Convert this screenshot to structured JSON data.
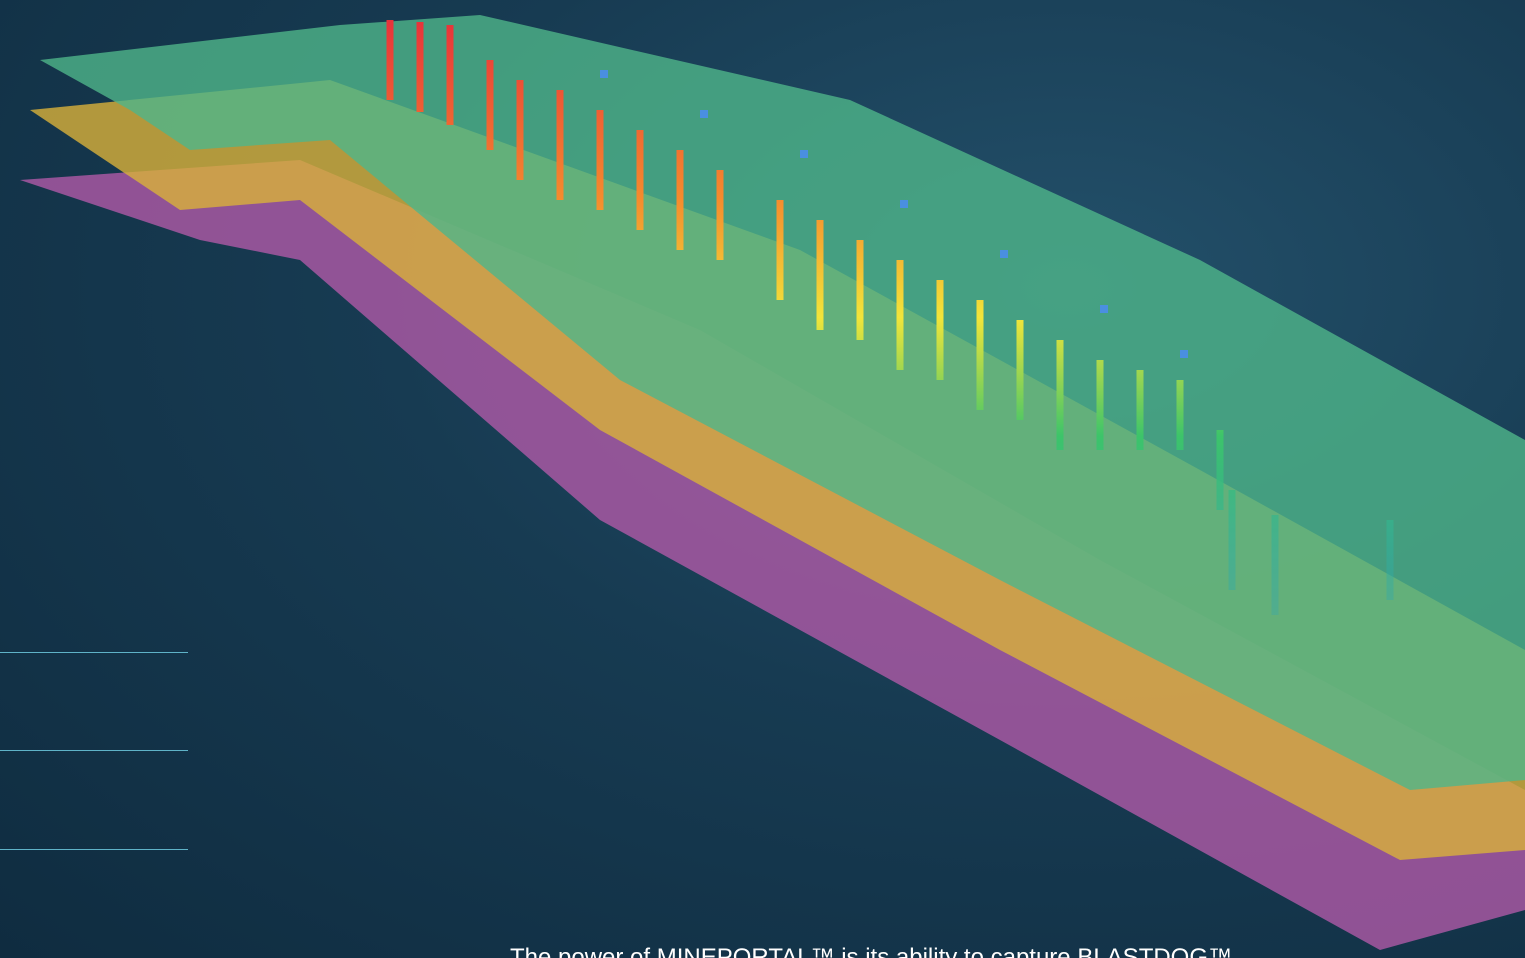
{
  "caption": "The power of MINEPORTAL™ is its ability to capture BLASTDOG™"
}
